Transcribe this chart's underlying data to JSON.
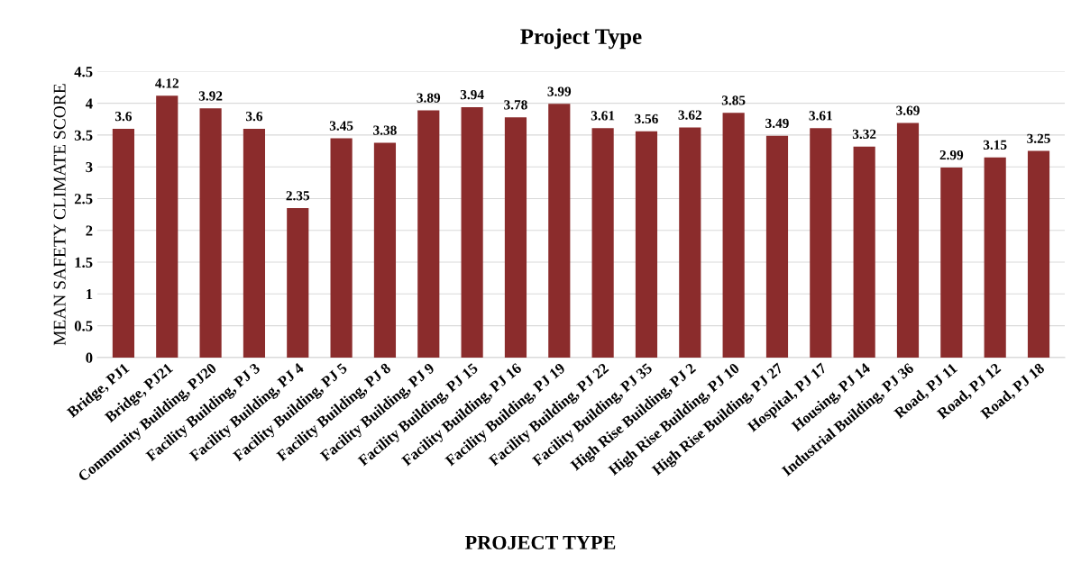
{
  "chart_data": {
    "type": "bar",
    "title": "Project Type",
    "xlabel": "PROJECT TYPE",
    "ylabel": "MEAN SAFETY CLIMATE SCORE",
    "categories": [
      "Bridge, PJ1",
      "Bridge, PJ21",
      "Community Building, PJ20",
      "Facility Building, PJ 3",
      "Facility Building, PJ 4",
      "Facility Building, PJ 5",
      "Facility Building, PJ 8",
      "Facility Building, PJ 9",
      "Facility Building, PJ 15",
      "Facility Building, PJ 16",
      "Facility Building, PJ 19",
      "Facility Building, PJ 22",
      "Facility Building, PJ 35",
      "High Rise Building, PJ 2",
      "High Rise Building, PJ 10",
      "High Rise Building, PJ 27",
      "Hospital, PJ 17",
      "Housing, PJ 14",
      "Industrial Building, PJ 36",
      "Road, PJ 11",
      "Road, PJ 12",
      "Road, PJ 18"
    ],
    "values": [
      3.6,
      4.12,
      3.92,
      3.6,
      2.35,
      3.45,
      3.38,
      3.89,
      3.94,
      3.78,
      3.99,
      3.61,
      3.56,
      3.62,
      3.85,
      3.49,
      3.61,
      3.32,
      3.69,
      2.99,
      3.15,
      3.25
    ],
    "color": "#8b2c2c",
    "ylim": [
      0,
      4.5
    ],
    "yticks": [
      0,
      0.5,
      1,
      1.5,
      2,
      2.5,
      3,
      3.5,
      4,
      4.5
    ],
    "grid": "y",
    "data_labels": true
  }
}
